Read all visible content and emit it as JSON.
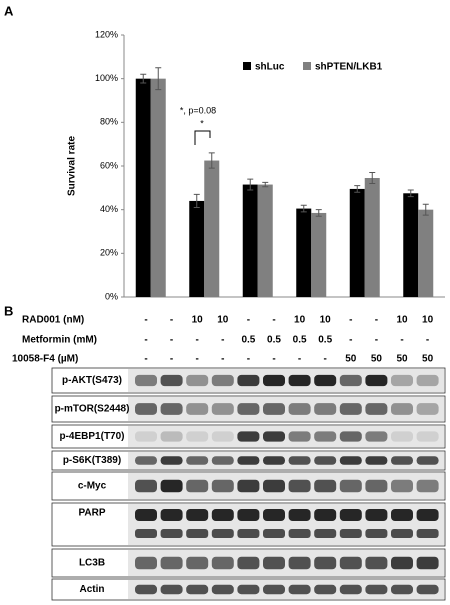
{
  "panels": {
    "a": "A",
    "b": "B"
  },
  "chart_data": {
    "type": "bar",
    "ylabel": "Survival rate",
    "categories": [
      null,
      null,
      null,
      null,
      null,
      null
    ],
    "series": [
      {
        "name": "shLuc",
        "color": "#000000",
        "values": [
          100,
          44,
          51.5,
          40.5,
          49.5,
          47.5
        ],
        "errors": [
          2,
          3,
          2.5,
          1.5,
          1.5,
          1.5
        ]
      },
      {
        "name": "shPTEN/LKB1",
        "color": "#808080",
        "values": [
          100,
          62.5,
          51.5,
          38.5,
          54.5,
          40
        ],
        "errors": [
          5,
          3.5,
          1,
          1.5,
          2.5,
          2.5
        ]
      }
    ],
    "ylim": [
      0,
      120
    ],
    "yticks": [
      {
        "value": 0,
        "label": "0%"
      },
      {
        "value": 20,
        "label": "20%"
      },
      {
        "value": 40,
        "label": "40%"
      },
      {
        "value": 60,
        "label": "60%"
      },
      {
        "value": 80,
        "label": "80%"
      },
      {
        "value": 100,
        "label": "100%"
      },
      {
        "value": 120,
        "label": "120%"
      }
    ],
    "legend": "upper right",
    "annotations": [
      {
        "text": "*, p=0.08"
      },
      {
        "text": "*"
      }
    ]
  },
  "treatments": [
    {
      "label": "RAD001 (nM)",
      "values": [
        "-",
        "-",
        "10",
        "10",
        "-",
        "-",
        "10",
        "10",
        "-",
        "-",
        "10",
        "10"
      ]
    },
    {
      "label": "Metformin (mM)",
      "values": [
        "-",
        "-",
        "-",
        "-",
        "0.5",
        "0.5",
        "0.5",
        "0.5",
        "-",
        "-",
        "-",
        "-"
      ]
    },
    {
      "label": "10058-F4 (µM)",
      "values": [
        "-",
        "-",
        "-",
        "-",
        "-",
        "-",
        "-",
        "-",
        "50",
        "50",
        "50",
        "50"
      ]
    }
  ],
  "blots": [
    {
      "label": "p-AKT(S473)"
    },
    {
      "label": "p-mTOR(S2448)"
    },
    {
      "label": "p-4EBP1(T70)"
    },
    {
      "label": "p-S6K(T389)"
    },
    {
      "label": "c-Myc"
    },
    {
      "label": "PARP"
    },
    {
      "label": "LC3B"
    },
    {
      "label": "Actin"
    }
  ]
}
